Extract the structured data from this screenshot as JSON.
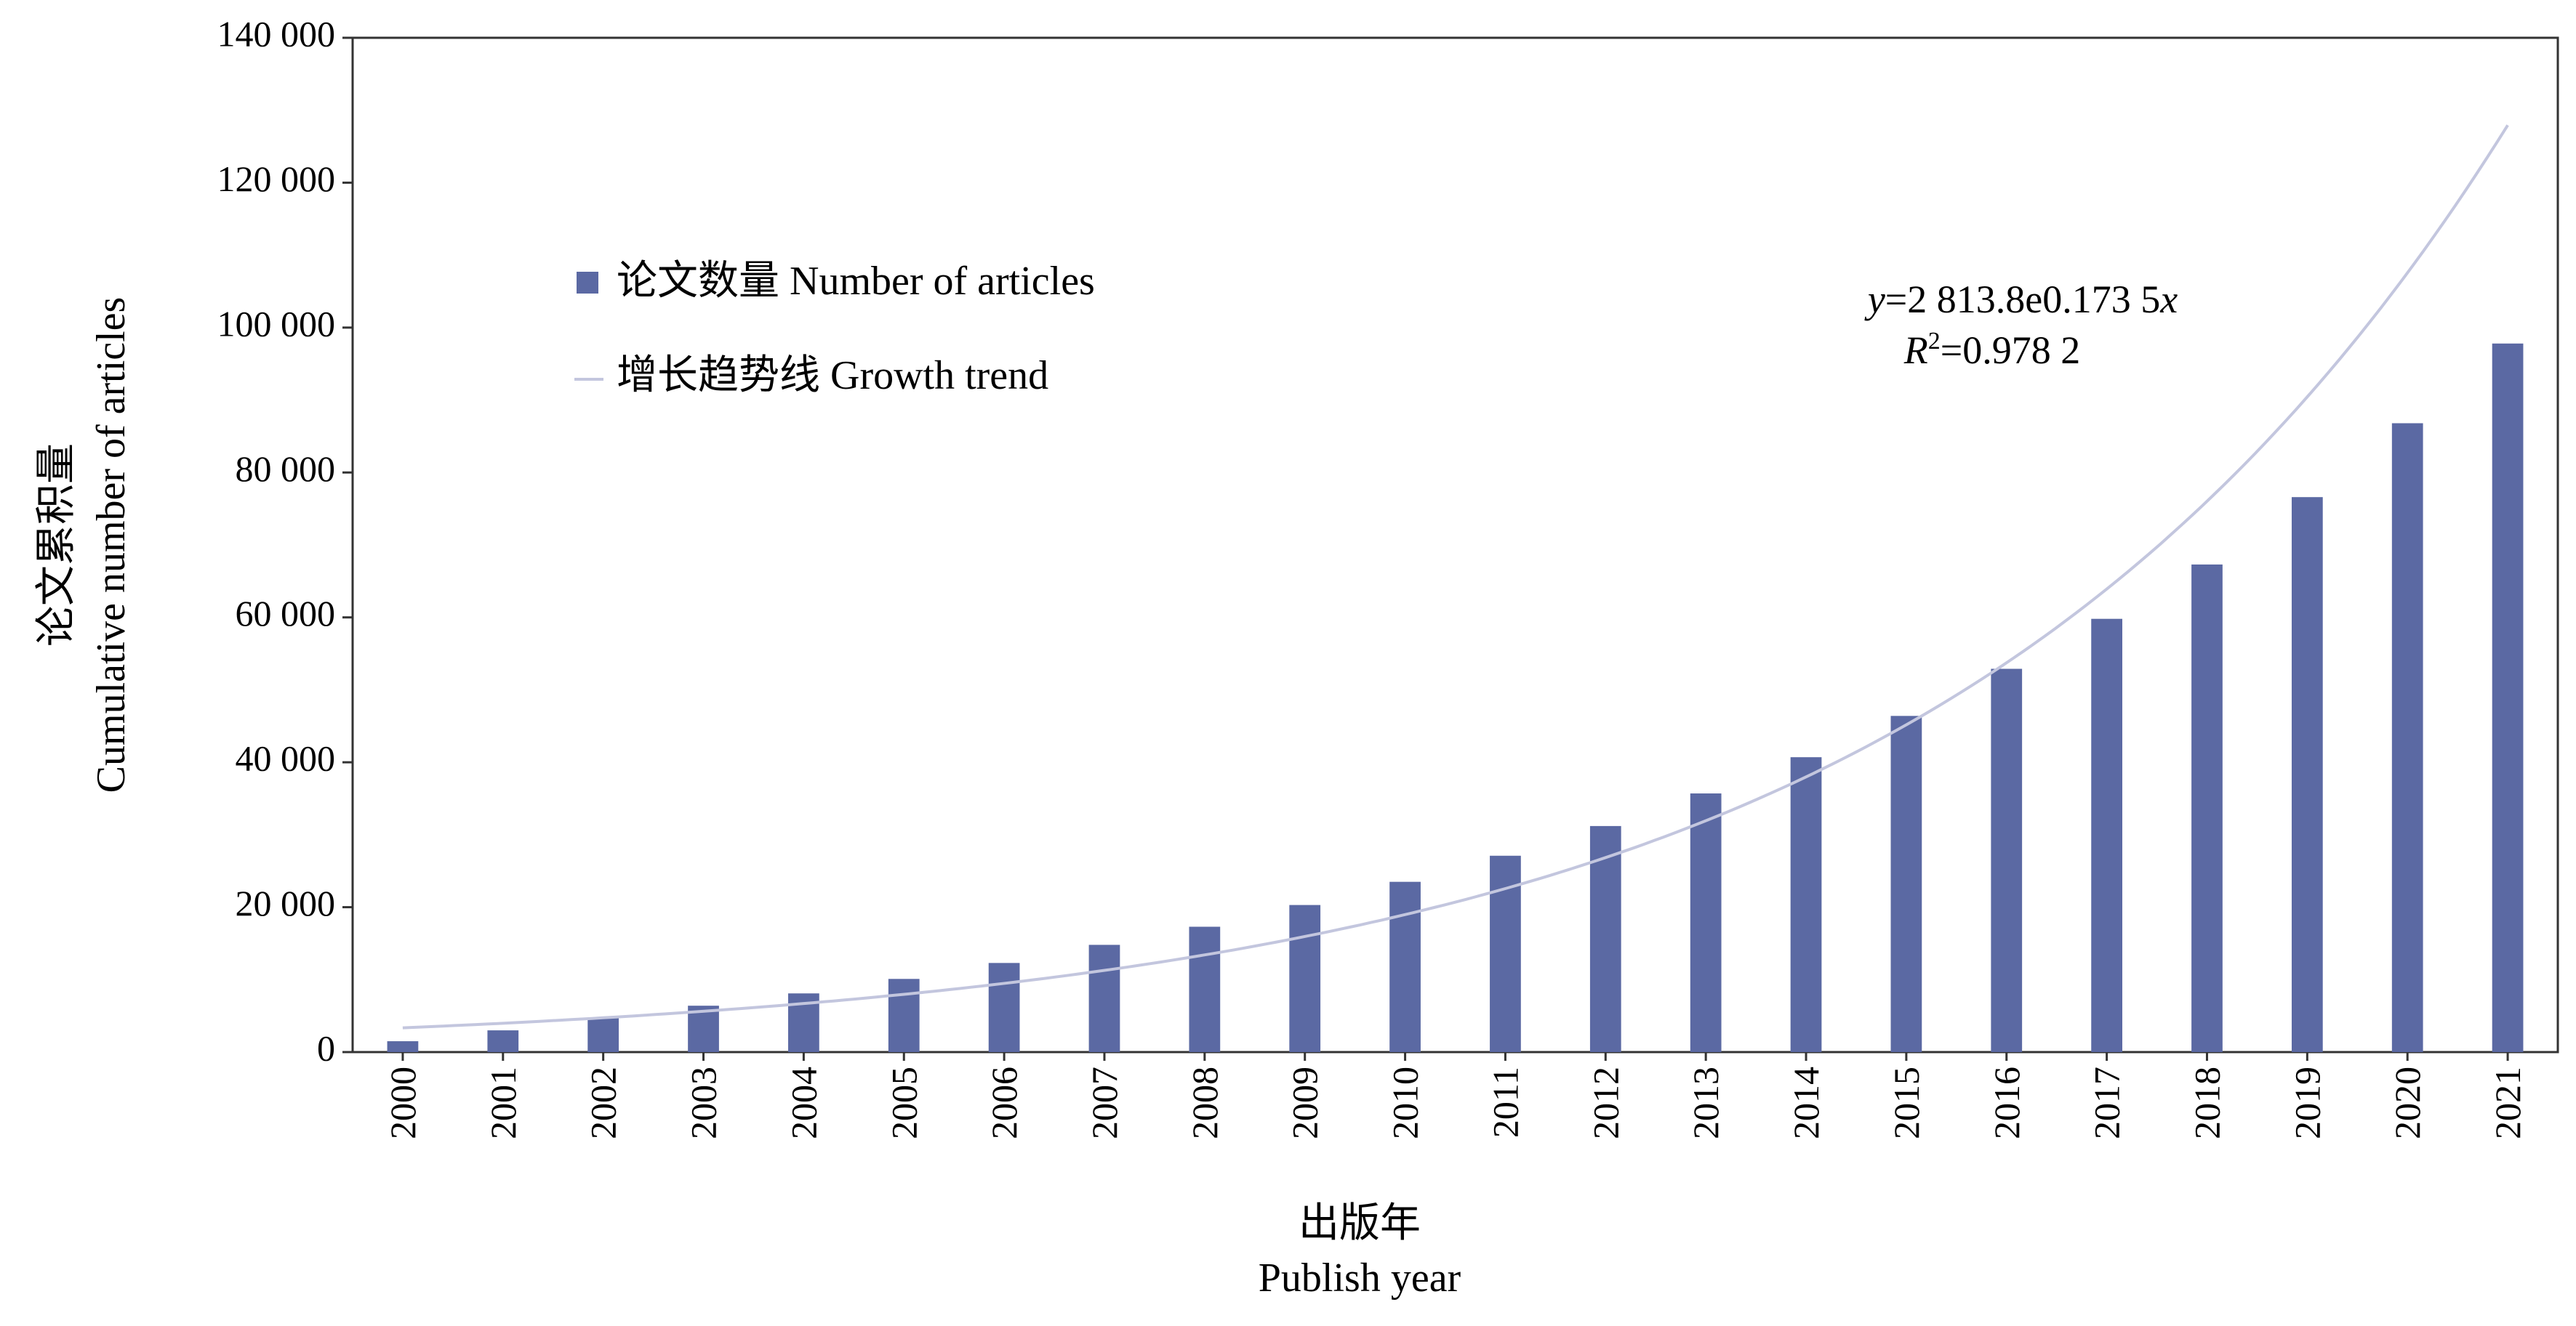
{
  "chart_data": {
    "type": "bar",
    "categories": [
      "2000",
      "2001",
      "2002",
      "2003",
      "2004",
      "2005",
      "2006",
      "2007",
      "2008",
      "2009",
      "2010",
      "2011",
      "2012",
      "2013",
      "2014",
      "2015",
      "2016",
      "2017",
      "2018",
      "2019",
      "2020",
      "2021"
    ],
    "series": [
      {
        "name": "论文数量 Number of articles",
        "type": "bar",
        "color": "#5b69a3",
        "values": [
          1500,
          3000,
          4700,
          6400,
          8100,
          10100,
          12300,
          14800,
          17300,
          20300,
          23500,
          27100,
          31200,
          35700,
          40700,
          46400,
          52900,
          59800,
          67300,
          76600,
          86800,
          97800
        ]
      },
      {
        "name": "增长趋势线 Growth trend",
        "type": "line",
        "color": "#c3c6de",
        "equation": {
          "a": 2813.8,
          "b": 0.1735,
          "x_start": 1
        }
      }
    ],
    "xlabel_cn": "出版年",
    "xlabel_en": "Publish year",
    "ylabel_cn": "论文累积量",
    "ylabel_en": "Cumulative number of articles",
    "ylim": [
      0,
      140000
    ],
    "yticks": [
      0,
      20000,
      40000,
      60000,
      80000,
      100000,
      120000,
      140000
    ],
    "ytick_labels": [
      "0",
      "20 000",
      "40 000",
      "60 000",
      "80 000",
      "100 000",
      "120 000",
      "140 000"
    ],
    "annotation": {
      "eq_y_var": "y",
      "eq_y_rest": "=2 813.8e0.173 5",
      "eq_y_x": "x",
      "eq_r_var": "R",
      "eq_r_sup": "2",
      "eq_r_rest": "=0.978 2"
    },
    "legend_position": "top-left",
    "grid": false
  }
}
